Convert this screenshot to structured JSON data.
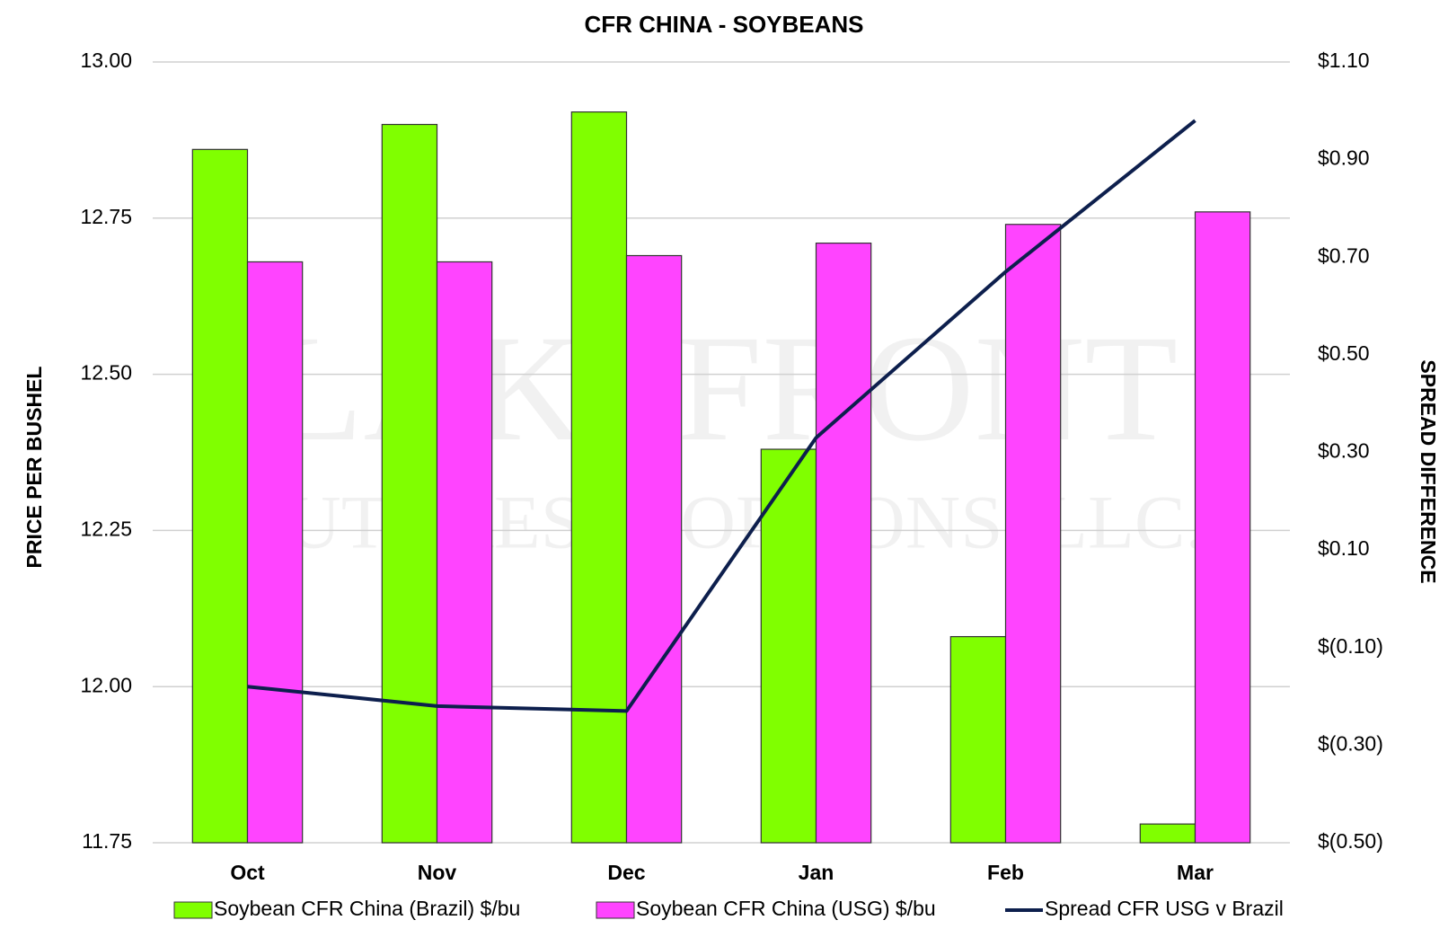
{
  "chart_data": {
    "type": "bar_line",
    "title": "CFR CHINA - SOYBEANS",
    "y_label": "PRICE PER BUSHEL",
    "y2_label": "SPREAD DIFFERENCE",
    "watermark": [
      "LAKEFRONT",
      "FUTURES & OPTIONS, LLC."
    ],
    "categories": [
      "Oct",
      "Nov",
      "Dec",
      "Jan",
      "Feb",
      "Mar"
    ],
    "series": [
      {
        "name": "Soybean CFR China (Brazil) $/bu",
        "type": "bar",
        "color": "#80ff00",
        "values": [
          12.86,
          12.9,
          12.92,
          12.38,
          12.08,
          11.78
        ]
      },
      {
        "name": "Soybean CFR China (USG) $/bu",
        "type": "bar",
        "color": "#ff44ff",
        "values": [
          12.68,
          12.68,
          12.69,
          12.71,
          12.74,
          12.76
        ]
      },
      {
        "name": "Spread CFR USG v Brazil",
        "type": "line",
        "axis": "y2",
        "color": "#0d1f4d",
        "values": [
          -0.18,
          -0.22,
          -0.23,
          0.33,
          0.67,
          0.98
        ]
      }
    ],
    "ylim": [
      11.75,
      13.0
    ],
    "yticks": [
      {
        "value": 11.75,
        "label": "11.75"
      },
      {
        "value": 12.0,
        "label": "12.00"
      },
      {
        "value": 12.25,
        "label": "12.25"
      },
      {
        "value": 12.5,
        "label": "12.50"
      },
      {
        "value": 12.75,
        "label": "12.75"
      },
      {
        "value": 13.0,
        "label": "13.00"
      }
    ],
    "y2lim": [
      -0.5,
      1.1
    ],
    "y2ticks": [
      {
        "value": -0.5,
        "label": "$(0.50)"
      },
      {
        "value": -0.3,
        "label": "$(0.30)"
      },
      {
        "value": -0.1,
        "label": "$(0.10)"
      },
      {
        "value": 0.1,
        "label": "$0.10"
      },
      {
        "value": 0.3,
        "label": "$0.30"
      },
      {
        "value": 0.5,
        "label": "$0.50"
      },
      {
        "value": 0.7,
        "label": "$0.70"
      },
      {
        "value": 0.9,
        "label": "$0.90"
      },
      {
        "value": 1.1,
        "label": "$1.10"
      }
    ],
    "grid": true,
    "legend": "bottom"
  }
}
